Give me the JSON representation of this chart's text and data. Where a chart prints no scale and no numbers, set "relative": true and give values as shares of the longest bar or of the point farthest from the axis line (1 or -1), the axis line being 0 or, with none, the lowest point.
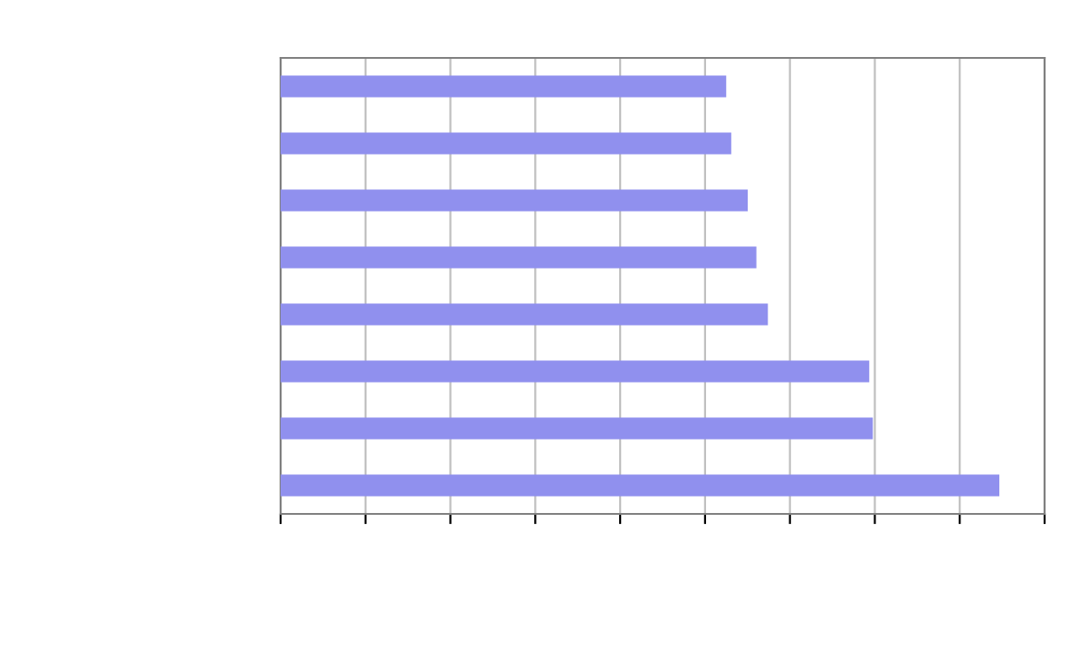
{
  "chart_data": {
    "type": "bar",
    "orientation": "horizontal",
    "relative": true,
    "categories": [
      null,
      null,
      null,
      null,
      null,
      null,
      null,
      null
    ],
    "values": [
      0.62,
      0.627,
      0.65,
      0.662,
      0.678,
      0.819,
      0.824,
      1
    ],
    "color": "#9090ee",
    "grid": "x"
  }
}
